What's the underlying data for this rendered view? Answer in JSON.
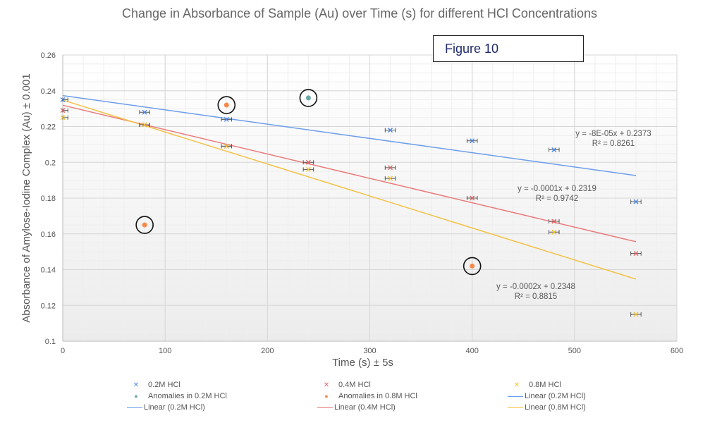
{
  "chart_data": {
    "type": "scatter",
    "title": "Change in Absorbance of Sample (Au) over Time (s) for different HCl Concentrations",
    "annotation_box": "Figure 10",
    "xlabel": "Time (s) ± 5s",
    "ylabel": "Absorbance of Amylose-Iodine Complex (Au) ± 0.001",
    "xlim": [
      0,
      600
    ],
    "ylim": [
      0.1,
      0.26
    ],
    "xticks": [
      "0",
      "100",
      "200",
      "300",
      "400",
      "500",
      "600"
    ],
    "yticks": [
      "0.1",
      "0.12",
      "0.14",
      "0.16",
      "0.18",
      "0.2",
      "0.22",
      "0.24",
      "0.26"
    ],
    "grid": true,
    "legend_position": "bottom",
    "x_error": 5,
    "series": [
      {
        "name": "0.2M HCl",
        "color": "#4a86e8",
        "marker": "x",
        "x": [
          0,
          80,
          160,
          320,
          400,
          480,
          560
        ],
        "y": [
          0.235,
          0.228,
          0.224,
          0.218,
          0.212,
          0.207,
          0.178
        ]
      },
      {
        "name": "0.4M HCl",
        "color": "#e06666",
        "marker": "x",
        "x": [
          0,
          80,
          160,
          240,
          320,
          400,
          480,
          560
        ],
        "y": [
          0.229,
          0.221,
          0.209,
          0.2,
          0.197,
          0.18,
          0.167,
          0.149
        ]
      },
      {
        "name": "0.8M HCl",
        "color": "#f1c232",
        "marker": "x",
        "x": [
          0,
          80,
          160,
          240,
          320,
          480,
          560
        ],
        "y": [
          0.225,
          0.221,
          0.209,
          0.196,
          0.191,
          0.161,
          0.115
        ]
      },
      {
        "name": "Anomalies in 0.2M HCl",
        "color": "#6aa8a8",
        "marker": "circle",
        "circled": true,
        "x": [
          240
        ],
        "y": [
          0.236
        ]
      },
      {
        "name": "Anomalies in 0.8M HCl",
        "color": "#f6894a",
        "marker": "circle",
        "circled": true,
        "x": [
          80,
          160,
          400
        ],
        "y": [
          0.165,
          0.232,
          0.142
        ]
      }
    ],
    "trendlines": [
      {
        "name": "Linear (0.2M HCl)",
        "color": "#6d9eeb",
        "x_range": [
          0,
          560
        ],
        "y_range": [
          0.2373,
          0.1926
        ],
        "equation": "y = -8E-05x + 0.2373",
        "r2": "R² = 0.8261"
      },
      {
        "name": "Linear (0.4M HCl)",
        "color": "#ea7b7b",
        "x_range": [
          0,
          560
        ],
        "y_range": [
          0.2319,
          0.1556
        ],
        "equation": "y = -0.0001x + 0.2319",
        "r2": "R² = 0.9742"
      },
      {
        "name": "Linear (0.8M HCl)",
        "color": "#f6c143",
        "x_range": [
          0,
          560
        ],
        "y_range": [
          0.2348,
          0.1347
        ],
        "equation": "y = -0.0002x + 0.2348",
        "r2": "R² = 0.8815"
      }
    ],
    "legend_entries": [
      {
        "label": "0.2M HCl",
        "kind": "x",
        "color": "#4a86e8"
      },
      {
        "label": "0.4M HCl",
        "kind": "x",
        "color": "#e06666"
      },
      {
        "label": "0.8M HCl",
        "kind": "x",
        "color": "#f1c232"
      },
      {
        "label": "Anomalies in 0.2M HCl",
        "kind": "dot",
        "color": "#6aa8a8"
      },
      {
        "label": "Anomalies in 0.8M HCl",
        "kind": "dot",
        "color": "#f6894a"
      },
      {
        "label": "Linear (0.2M HCl)",
        "kind": "line",
        "color": "#6d9eeb"
      },
      {
        "label": "Linear (0.2M HCl)",
        "kind": "line",
        "color": "#6d9eeb"
      },
      {
        "label": "Linear (0.4M HCl)",
        "kind": "line",
        "color": "#ea7b7b"
      },
      {
        "label": "Linear (0.8M HCl)",
        "kind": "line",
        "color": "#f6c143"
      }
    ]
  }
}
